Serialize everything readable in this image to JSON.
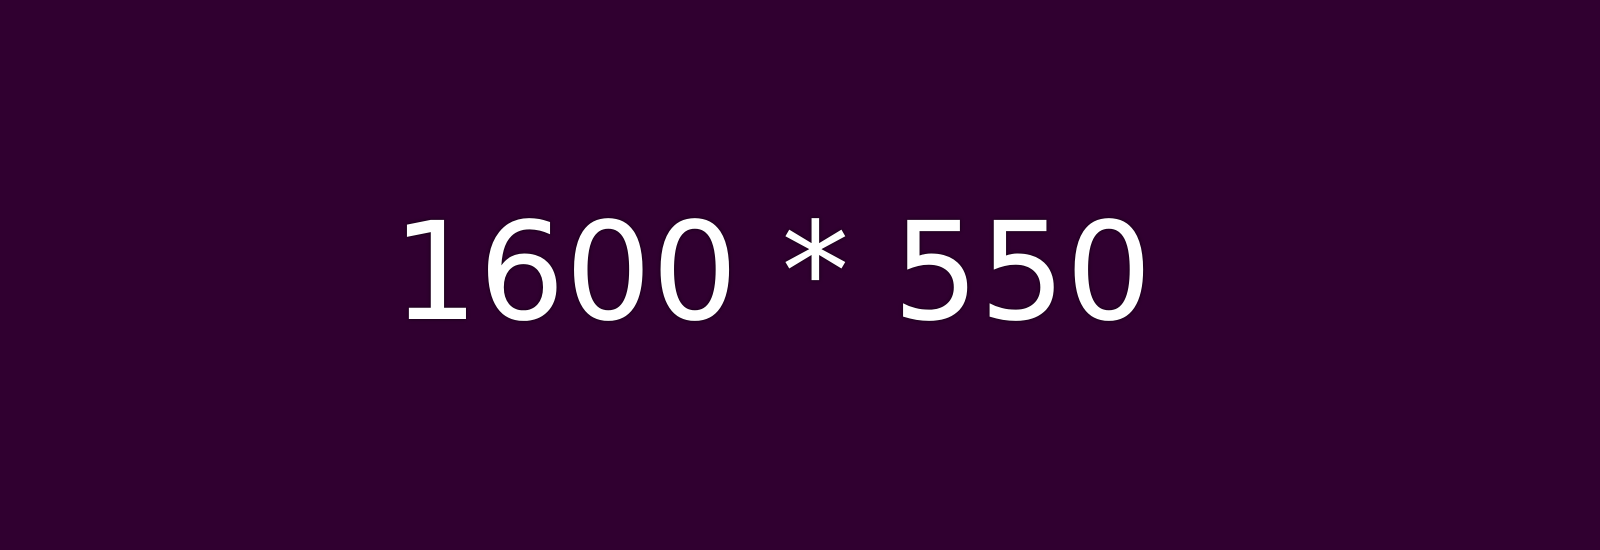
{
  "background_color": "#300030",
  "text_color": "#ffffff",
  "placeholder": {
    "label": "1600 * 550"
  }
}
